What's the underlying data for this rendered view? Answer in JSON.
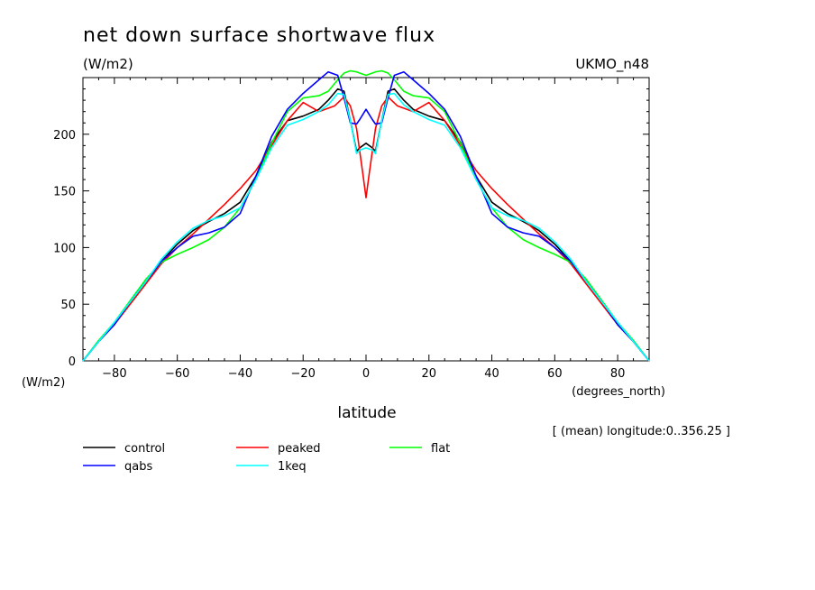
{
  "chart_data": {
    "type": "line",
    "title": "net down surface shortwave flux",
    "units": "(W/m2)",
    "model": "UKMO_n48",
    "xlabel": "latitude",
    "xunits": "(degrees_north)",
    "yunits": "(W/m2)",
    "subtitle": "[ (mean) longitude:0..356.25 ]",
    "xlim": [
      -90,
      90
    ],
    "ylim": [
      0,
      250
    ],
    "xticks": [
      -80,
      -60,
      -40,
      -20,
      0,
      20,
      40,
      60,
      80
    ],
    "xtick_labels": [
      "−80",
      "−60",
      "−40",
      "−20",
      "0",
      "20",
      "40",
      "60",
      "80"
    ],
    "yticks": [
      0,
      50,
      100,
      150,
      200
    ],
    "ytick_labels": [
      "0",
      "50",
      "100",
      "150",
      "200"
    ],
    "series": [
      {
        "name": "control",
        "color": "#000000",
        "x": [
          -90,
          -85,
          -80,
          -75,
          -70,
          -65,
          -60,
          -55,
          -50,
          -45,
          -40,
          -35,
          -30,
          -25,
          -20,
          -15,
          -12,
          -9,
          -7,
          -5,
          -3,
          -2,
          0,
          2,
          3,
          5,
          7,
          9,
          12,
          15,
          20,
          25,
          30,
          35,
          40,
          45,
          50,
          55,
          60,
          65,
          70,
          75,
          80,
          85,
          90
        ],
        "y": [
          0,
          17,
          32,
          52,
          70,
          88,
          103,
          115,
          123,
          130,
          140,
          163,
          193,
          212,
          216,
          222,
          230,
          240,
          238,
          212,
          185,
          188,
          192,
          188,
          185,
          212,
          238,
          240,
          230,
          222,
          216,
          212,
          193,
          163,
          140,
          130,
          123,
          115,
          103,
          88,
          70,
          52,
          32,
          17,
          0
        ]
      },
      {
        "name": "peaked",
        "color": "#ff0000",
        "x": [
          -90,
          -85,
          -80,
          -75,
          -70,
          -65,
          -60,
          -55,
          -50,
          -45,
          -40,
          -35,
          -30,
          -25,
          -20,
          -15,
          -10,
          -7,
          -5,
          -3,
          -1,
          0,
          1,
          3,
          5,
          7,
          10,
          15,
          20,
          25,
          30,
          35,
          40,
          45,
          50,
          55,
          60,
          65,
          70,
          75,
          80,
          85,
          90
        ],
        "y": [
          0,
          17,
          32,
          50,
          68,
          86,
          100,
          112,
          125,
          138,
          152,
          168,
          190,
          212,
          228,
          220,
          225,
          233,
          225,
          205,
          165,
          144,
          165,
          205,
          225,
          233,
          225,
          220,
          228,
          212,
          190,
          168,
          152,
          138,
          125,
          112,
          100,
          86,
          68,
          50,
          32,
          17,
          0
        ]
      },
      {
        "name": "flat",
        "color": "#00ff00",
        "x": [
          -90,
          -85,
          -80,
          -75,
          -70,
          -65,
          -60,
          -55,
          -50,
          -45,
          -40,
          -35,
          -30,
          -25,
          -20,
          -15,
          -12,
          -9,
          -7,
          -5,
          -3,
          0,
          3,
          5,
          7,
          9,
          12,
          15,
          20,
          25,
          30,
          35,
          40,
          45,
          50,
          55,
          60,
          65,
          70,
          75,
          80,
          85,
          90
        ],
        "y": [
          0,
          18,
          34,
          53,
          72,
          87,
          94,
          100,
          107,
          118,
          135,
          160,
          192,
          220,
          232,
          234,
          238,
          248,
          254,
          256,
          255,
          252,
          255,
          256,
          254,
          248,
          238,
          234,
          232,
          220,
          192,
          160,
          135,
          118,
          107,
          100,
          94,
          87,
          72,
          53,
          34,
          18,
          0
        ]
      },
      {
        "name": "qabs",
        "color": "#0000ff",
        "x": [
          -90,
          -85,
          -80,
          -75,
          -70,
          -65,
          -60,
          -55,
          -50,
          -45,
          -40,
          -35,
          -30,
          -25,
          -20,
          -15,
          -12,
          -9,
          -7,
          -5,
          -3,
          -2,
          0,
          2,
          3,
          5,
          7,
          9,
          12,
          15,
          20,
          25,
          30,
          35,
          40,
          45,
          50,
          55,
          60,
          65,
          70,
          75,
          80,
          85,
          90
        ],
        "y": [
          0,
          17,
          32,
          52,
          70,
          88,
          100,
          110,
          113,
          118,
          130,
          163,
          198,
          222,
          236,
          248,
          255,
          252,
          232,
          210,
          209,
          213,
          222,
          213,
          209,
          210,
          232,
          252,
          255,
          248,
          236,
          222,
          198,
          163,
          130,
          118,
          113,
          110,
          100,
          88,
          70,
          52,
          32,
          17,
          0
        ]
      },
      {
        "name": "1keq",
        "color": "#00ffff",
        "x": [
          -90,
          -85,
          -80,
          -75,
          -70,
          -65,
          -60,
          -55,
          -50,
          -45,
          -40,
          -35,
          -30,
          -25,
          -20,
          -15,
          -12,
          -9,
          -7,
          -5,
          -3,
          -2,
          0,
          2,
          3,
          5,
          7,
          9,
          12,
          15,
          20,
          25,
          30,
          35,
          40,
          45,
          50,
          55,
          60,
          65,
          70,
          75,
          80,
          85,
          90
        ],
        "y": [
          0,
          17,
          34,
          52,
          70,
          90,
          105,
          117,
          124,
          128,
          135,
          160,
          188,
          208,
          213,
          220,
          226,
          236,
          235,
          212,
          183,
          186,
          188,
          186,
          183,
          212,
          235,
          236,
          226,
          220,
          213,
          208,
          188,
          160,
          135,
          128,
          124,
          117,
          105,
          90,
          70,
          52,
          34,
          17,
          0
        ]
      }
    ]
  }
}
